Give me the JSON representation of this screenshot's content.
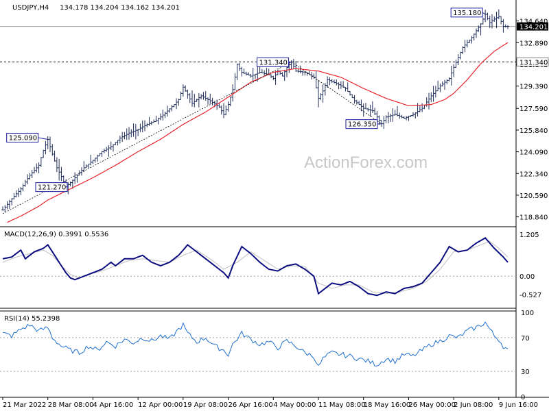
{
  "header": {
    "symbol": "USDJPY,H4",
    "ohlc": "134.178 134.204 134.162 134.201"
  },
  "watermark": "ActionForex.com",
  "colors": {
    "price": "#1f2e5a",
    "ma": "#e8232b",
    "label_border": "#1a1a99",
    "macd": "#0b0b80",
    "signal": "#c0c0c0",
    "rsi": "#1e6fd0",
    "grid": "#a0a0a0"
  },
  "chart_data": [
    {
      "type": "line",
      "title": "USDJPY,H4",
      "ylim": [
        118.1,
        136.0
      ],
      "y_ticks": [
        "134.640",
        "132.890",
        "131.140",
        "129.390",
        "127.590",
        "125.840",
        "124.090",
        "122.340",
        "120.590",
        "118.840"
      ],
      "y_tick_values": [
        134.64,
        132.89,
        131.14,
        129.39,
        127.59,
        125.84,
        124.09,
        122.34,
        120.59,
        118.84
      ],
      "x_ticks": [
        "21 Mar 2022",
        "28 Mar 08:00",
        "4 Apr 16:00",
        "12 Apr 00:00",
        "19 Apr 08:00",
        "26 Apr 16:00",
        "4 May 00:00",
        "11 May 08:00",
        "18 May 16:00",
        "26 May 00:00",
        "2 Jun 08:00",
        "9 Jun 16:00"
      ],
      "x_tick_index": [
        0,
        10,
        20,
        30,
        40,
        50,
        60,
        70,
        80,
        90,
        100,
        110
      ],
      "price_points": [
        [
          0,
          119.4
        ],
        [
          2,
          120.3
        ],
        [
          4,
          121.1
        ],
        [
          6,
          122.2
        ],
        [
          8,
          123.0
        ],
        [
          9,
          124.2
        ],
        [
          10,
          125.09
        ],
        [
          11,
          123.9
        ],
        [
          12,
          122.8
        ],
        [
          13,
          122.1
        ],
        [
          14,
          121.3
        ],
        [
          15,
          121.6
        ],
        [
          16,
          122.0
        ],
        [
          18,
          122.8
        ],
        [
          20,
          123.4
        ],
        [
          22,
          124.1
        ],
        [
          24,
          124.5
        ],
        [
          26,
          125.2
        ],
        [
          28,
          125.6
        ],
        [
          30,
          125.9
        ],
        [
          32,
          126.3
        ],
        [
          34,
          126.6
        ],
        [
          36,
          127.2
        ],
        [
          38,
          127.9
        ],
        [
          39,
          128.3
        ],
        [
          40,
          129.3
        ],
        [
          41,
          128.7
        ],
        [
          42,
          128.0
        ],
        [
          44,
          128.6
        ],
        [
          46,
          128.2
        ],
        [
          48,
          127.7
        ],
        [
          49,
          127.1
        ],
        [
          50,
          127.9
        ],
        [
          51,
          129.1
        ],
        [
          52,
          131.14
        ],
        [
          53,
          130.5
        ],
        [
          55,
          130.2
        ],
        [
          57,
          130.5
        ],
        [
          59,
          130.3
        ],
        [
          60,
          130.0
        ],
        [
          61,
          130.6
        ],
        [
          62,
          130.2
        ],
        [
          63,
          130.9
        ],
        [
          64,
          131.34
        ],
        [
          65,
          130.6
        ],
        [
          67,
          130.5
        ],
        [
          69,
          130.1
        ],
        [
          70,
          128.4
        ],
        [
          71,
          129.0
        ],
        [
          72,
          129.9
        ],
        [
          74,
          129.6
        ],
        [
          76,
          129.2
        ],
        [
          78,
          128.2
        ],
        [
          80,
          127.6
        ],
        [
          82,
          127.4
        ],
        [
          83,
          126.9
        ],
        [
          84,
          126.35
        ],
        [
          85,
          126.9
        ],
        [
          87,
          127.1
        ],
        [
          89,
          126.8
        ],
        [
          91,
          127.1
        ],
        [
          93,
          127.6
        ],
        [
          95,
          128.6
        ],
        [
          97,
          129.4
        ],
        [
          99,
          130.0
        ],
        [
          100,
          130.9
        ],
        [
          101,
          131.7
        ],
        [
          102,
          132.5
        ],
        [
          104,
          133.3
        ],
        [
          106,
          134.4
        ],
        [
          107,
          135.18
        ],
        [
          108,
          134.5
        ],
        [
          109,
          134.8
        ],
        [
          110,
          135.0
        ],
        [
          111,
          134.2
        ],
        [
          112,
          134.201
        ]
      ],
      "ma_points": [
        [
          1,
          118.4
        ],
        [
          4,
          118.9
        ],
        [
          8,
          119.7
        ],
        [
          10,
          120.2
        ],
        [
          15,
          121.1
        ],
        [
          20,
          122.0
        ],
        [
          25,
          123.0
        ],
        [
          30,
          124.1
        ],
        [
          35,
          125.1
        ],
        [
          40,
          126.3
        ],
        [
          45,
          127.3
        ],
        [
          50,
          128.5
        ],
        [
          55,
          129.7
        ],
        [
          60,
          130.5
        ],
        [
          65,
          130.8
        ],
        [
          70,
          130.6
        ],
        [
          75,
          130.1
        ],
        [
          80,
          129.2
        ],
        [
          85,
          128.4
        ],
        [
          90,
          127.8
        ],
        [
          95,
          127.9
        ],
        [
          98,
          128.3
        ],
        [
          100,
          128.8
        ],
        [
          103,
          129.9
        ],
        [
          106,
          131.2
        ],
        [
          109,
          132.2
        ],
        [
          112,
          132.9
        ]
      ],
      "annotations": [
        {
          "text": "125.090",
          "value": 125.09
        },
        {
          "text": "121.270",
          "value": 121.27
        },
        {
          "text": "131.340",
          "value": 131.34
        },
        {
          "text": "126.350",
          "value": 126.35
        },
        {
          "text": "135.180",
          "value": 135.18
        }
      ],
      "hline": {
        "value": 131.34,
        "label": "131.340"
      },
      "last_price": {
        "value": 134.201,
        "label": "134.201"
      }
    },
    {
      "type": "line",
      "title": "MACD(12,26,9) 0.3991 0.5536",
      "ylim": [
        -0.9,
        1.4
      ],
      "y_ticks": [
        "1.205",
        "0.00",
        "-0.527"
      ],
      "y_tick_values": [
        1.205,
        0.0,
        -0.527
      ],
      "series": [
        {
          "name": "MACD",
          "points": [
            [
              0,
              0.5
            ],
            [
              2,
              0.55
            ],
            [
              4,
              0.75
            ],
            [
              5,
              0.5
            ],
            [
              7,
              0.7
            ],
            [
              9,
              0.8
            ],
            [
              10,
              0.9
            ],
            [
              12,
              0.5
            ],
            [
              14,
              0.1
            ],
            [
              15,
              -0.05
            ],
            [
              16,
              -0.1
            ],
            [
              18,
              0.0
            ],
            [
              20,
              0.1
            ],
            [
              22,
              0.2
            ],
            [
              24,
              0.4
            ],
            [
              25,
              0.3
            ],
            [
              27,
              0.5
            ],
            [
              29,
              0.5
            ],
            [
              31,
              0.6
            ],
            [
              33,
              0.4
            ],
            [
              35,
              0.3
            ],
            [
              37,
              0.4
            ],
            [
              39,
              0.6
            ],
            [
              41,
              0.9
            ],
            [
              43,
              0.7
            ],
            [
              45,
              0.5
            ],
            [
              47,
              0.3
            ],
            [
              49,
              0.1
            ],
            [
              50,
              -0.05
            ],
            [
              51,
              0.3
            ],
            [
              53,
              0.85
            ],
            [
              55,
              0.65
            ],
            [
              57,
              0.4
            ],
            [
              59,
              0.2
            ],
            [
              61,
              0.15
            ],
            [
              63,
              0.3
            ],
            [
              65,
              0.35
            ],
            [
              67,
              0.2
            ],
            [
              69,
              0.0
            ],
            [
              70,
              -0.5
            ],
            [
              71,
              -0.4
            ],
            [
              73,
              -0.2
            ],
            [
              75,
              -0.25
            ],
            [
              77,
              -0.15
            ],
            [
              79,
              -0.3
            ],
            [
              81,
              -0.5
            ],
            [
              83,
              -0.55
            ],
            [
              85,
              -0.45
            ],
            [
              87,
              -0.5
            ],
            [
              89,
              -0.35
            ],
            [
              91,
              -0.3
            ],
            [
              93,
              -0.2
            ],
            [
              95,
              0.1
            ],
            [
              97,
              0.4
            ],
            [
              99,
              0.85
            ],
            [
              101,
              0.7
            ],
            [
              103,
              0.75
            ],
            [
              105,
              0.95
            ],
            [
              107,
              1.1
            ],
            [
              109,
              0.8
            ],
            [
              111,
              0.55
            ],
            [
              112,
              0.4
            ]
          ]
        },
        {
          "name": "Signal",
          "points": [
            [
              0,
              0.4
            ],
            [
              3,
              0.55
            ],
            [
              6,
              0.65
            ],
            [
              9,
              0.75
            ],
            [
              11,
              0.6
            ],
            [
              13,
              0.3
            ],
            [
              15,
              0.05
            ],
            [
              17,
              -0.05
            ],
            [
              19,
              0.05
            ],
            [
              22,
              0.15
            ],
            [
              25,
              0.3
            ],
            [
              28,
              0.45
            ],
            [
              31,
              0.5
            ],
            [
              34,
              0.45
            ],
            [
              37,
              0.4
            ],
            [
              40,
              0.6
            ],
            [
              43,
              0.75
            ],
            [
              46,
              0.5
            ],
            [
              49,
              0.2
            ],
            [
              52,
              0.4
            ],
            [
              55,
              0.7
            ],
            [
              58,
              0.45
            ],
            [
              61,
              0.2
            ],
            [
              64,
              0.3
            ],
            [
              67,
              0.28
            ],
            [
              70,
              -0.2
            ],
            [
              73,
              -0.35
            ],
            [
              76,
              -0.25
            ],
            [
              79,
              -0.25
            ],
            [
              82,
              -0.45
            ],
            [
              85,
              -0.5
            ],
            [
              88,
              -0.45
            ],
            [
              91,
              -0.35
            ],
            [
              94,
              -0.15
            ],
            [
              97,
              0.2
            ],
            [
              100,
              0.7
            ],
            [
              103,
              0.75
            ],
            [
              106,
              0.9
            ],
            [
              108,
              1.0
            ],
            [
              110,
              0.8
            ],
            [
              112,
              0.55
            ]
          ]
        }
      ]
    },
    {
      "type": "line",
      "title": "RSI(14) 55.2398",
      "ylim": [
        0,
        100
      ],
      "y_ticks": [
        "100",
        "70",
        "30",
        "0"
      ],
      "y_tick_values": [
        100,
        70,
        30,
        0
      ],
      "series": [
        {
          "name": "RSI",
          "points": [
            [
              0,
              75
            ],
            [
              2,
              72
            ],
            [
              4,
              80
            ],
            [
              6,
              85
            ],
            [
              8,
              78
            ],
            [
              10,
              82
            ],
            [
              11,
              70
            ],
            [
              13,
              60
            ],
            [
              15,
              55
            ],
            [
              17,
              52
            ],
            [
              19,
              60
            ],
            [
              21,
              55
            ],
            [
              23,
              65
            ],
            [
              25,
              60
            ],
            [
              27,
              68
            ],
            [
              29,
              64
            ],
            [
              31,
              70
            ],
            [
              33,
              66
            ],
            [
              35,
              72
            ],
            [
              37,
              68
            ],
            [
              39,
              80
            ],
            [
              40,
              85
            ],
            [
              41,
              75
            ],
            [
              43,
              65
            ],
            [
              45,
              70
            ],
            [
              47,
              60
            ],
            [
              49,
              55
            ],
            [
              50,
              50
            ],
            [
              51,
              62
            ],
            [
              53,
              75
            ],
            [
              55,
              68
            ],
            [
              57,
              62
            ],
            [
              59,
              65
            ],
            [
              61,
              58
            ],
            [
              63,
              66
            ],
            [
              65,
              60
            ],
            [
              67,
              52
            ],
            [
              69,
              48
            ],
            [
              70,
              35
            ],
            [
              71,
              45
            ],
            [
              73,
              52
            ],
            [
              75,
              50
            ],
            [
              77,
              48
            ],
            [
              79,
              45
            ],
            [
              81,
              42
            ],
            [
              83,
              38
            ],
            [
              85,
              45
            ],
            [
              87,
              42
            ],
            [
              89,
              50
            ],
            [
              91,
              48
            ],
            [
              93,
              55
            ],
            [
              95,
              62
            ],
            [
              97,
              66
            ],
            [
              99,
              72
            ],
            [
              101,
              70
            ],
            [
              103,
              78
            ],
            [
              105,
              82
            ],
            [
              107,
              88
            ],
            [
              109,
              72
            ],
            [
              110,
              68
            ],
            [
              111,
              60
            ],
            [
              112,
              55
            ]
          ]
        }
      ]
    }
  ]
}
